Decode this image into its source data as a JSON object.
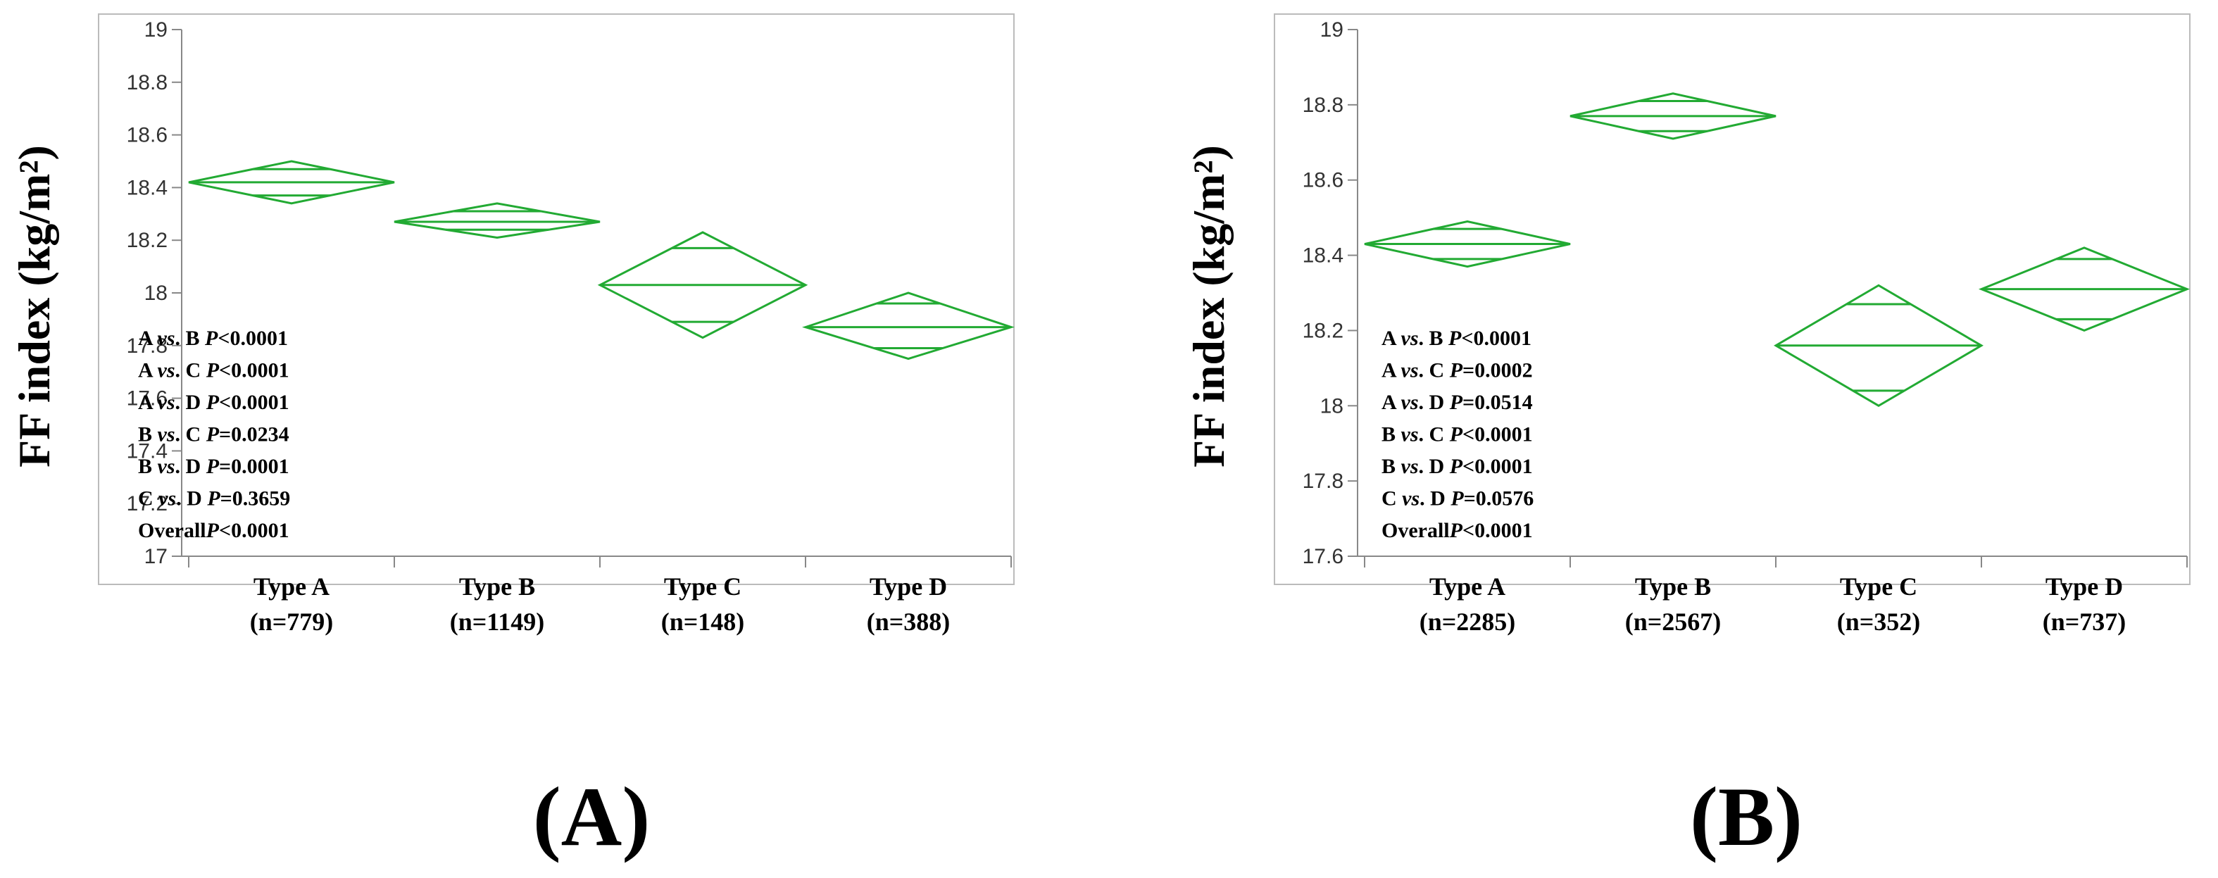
{
  "colors": {
    "diamond": "#22aa33",
    "frame": "#bbbbbb",
    "bg": "#ffffff"
  },
  "chart_data": [
    {
      "type": "diamond",
      "panel_label": "(A)",
      "ylabel": "FF index (kg/m²)",
      "ylim": [
        17,
        19
      ],
      "yticks": [
        17,
        17.2,
        17.4,
        17.6,
        17.8,
        18,
        18.2,
        18.4,
        18.6,
        18.8,
        19
      ],
      "categories": [
        "Type A",
        "Type B",
        "Type C",
        "Type D"
      ],
      "sample_sizes": [
        "(n=779)",
        "(n=1149)",
        "(n=148)",
        "(n=388)"
      ],
      "means": [
        18.42,
        18.27,
        18.03,
        17.87
      ],
      "ci_upper": [
        18.5,
        18.34,
        18.23,
        18.0
      ],
      "ci_lower": [
        18.34,
        18.21,
        17.83,
        17.75
      ],
      "overlap_upper": [
        18.47,
        18.31,
        18.17,
        17.96
      ],
      "overlap_lower": [
        18.37,
        18.24,
        17.89,
        17.79
      ],
      "stats": [
        [
          "A ",
          "vs",
          ". B ",
          "P",
          "<0.0001"
        ],
        [
          "A ",
          "vs",
          ". C ",
          "P",
          "<0.0001"
        ],
        [
          "A ",
          "vs",
          ". D ",
          "P",
          "<0.0001"
        ],
        [
          "B ",
          "vs",
          ". C ",
          "P",
          "=0.0234"
        ],
        [
          "B ",
          "vs",
          ". D ",
          "P",
          "=0.0001"
        ],
        [
          "C ",
          "vs",
          ". D ",
          "P",
          "=0.3659"
        ],
        [
          "Overall",
          "",
          "",
          "P",
          "<0.0001"
        ]
      ]
    },
    {
      "type": "diamond",
      "panel_label": "(B)",
      "ylabel": "FF index (kg/m²)",
      "ylim": [
        17.6,
        19
      ],
      "yticks": [
        17.6,
        17.8,
        18,
        18.2,
        18.4,
        18.6,
        18.8,
        19
      ],
      "categories": [
        "Type A",
        "Type B",
        "Type C",
        "Type D"
      ],
      "sample_sizes": [
        "(n=2285)",
        "(n=2567)",
        "(n=352)",
        "(n=737)"
      ],
      "means": [
        18.43,
        18.77,
        18.16,
        18.31
      ],
      "ci_upper": [
        18.49,
        18.83,
        18.32,
        18.42
      ],
      "ci_lower": [
        18.37,
        18.71,
        18.0,
        18.2
      ],
      "overlap_upper": [
        18.47,
        18.81,
        18.27,
        18.39
      ],
      "overlap_lower": [
        18.39,
        18.73,
        18.04,
        18.23
      ],
      "stats": [
        [
          "A ",
          "vs",
          ". B ",
          "P",
          "<0.0001"
        ],
        [
          "A ",
          "vs",
          ". C ",
          "P",
          "=0.0002"
        ],
        [
          "A ",
          "vs",
          ". D ",
          "P",
          "=0.0514"
        ],
        [
          "B ",
          "vs",
          ". C ",
          "P",
          "<0.0001"
        ],
        [
          "B ",
          "vs",
          ". D ",
          "P",
          "<0.0001"
        ],
        [
          "C ",
          "vs",
          ". D ",
          "P",
          "=0.0576"
        ],
        [
          "Overall",
          "",
          "",
          "P",
          "<0.0001"
        ]
      ]
    }
  ]
}
